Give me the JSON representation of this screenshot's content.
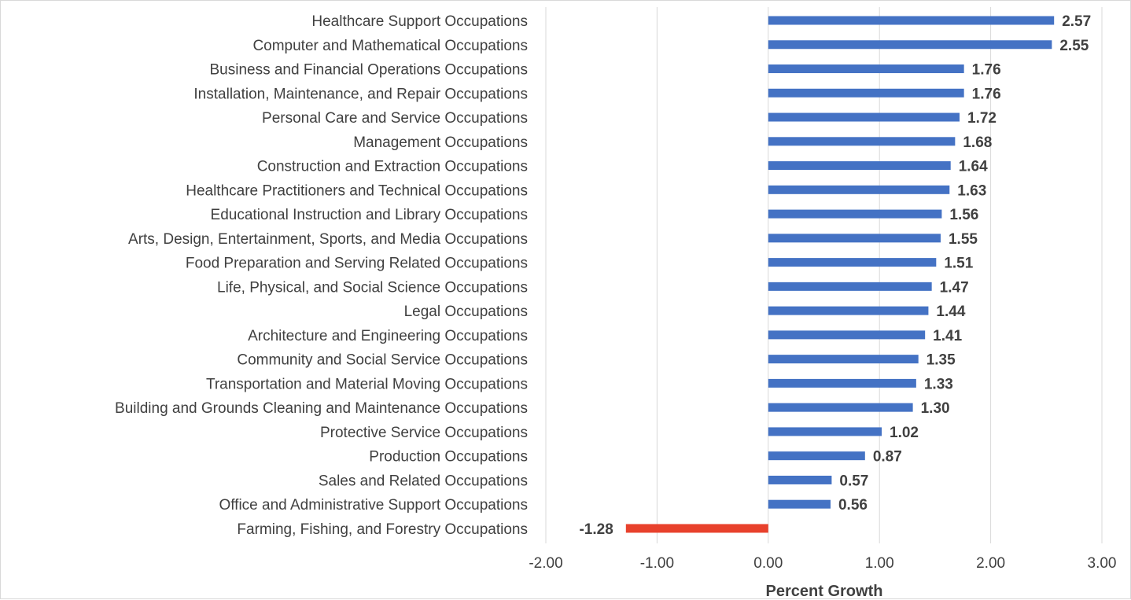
{
  "chart_data": {
    "type": "bar",
    "orientation": "horizontal",
    "title": "",
    "xlabel": "Percent Growth",
    "ylabel": "",
    "xlim": [
      -2,
      3
    ],
    "x_ticks": [
      "-2.00",
      "-1.00",
      "0.00",
      "1.00",
      "2.00",
      "3.00"
    ],
    "grid": true,
    "legend": "none",
    "colors": {
      "positive": "#4472c4",
      "negative": "#e8412c",
      "text": "#404040",
      "grid": "#d9d9d9"
    },
    "categories": [
      "Healthcare Support Occupations",
      "Computer and Mathematical Occupations",
      "Business and Financial Operations Occupations",
      "Installation, Maintenance, and Repair Occupations",
      "Personal Care and Service Occupations",
      "Management Occupations",
      "Construction and Extraction Occupations",
      "Healthcare Practitioners and Technical Occupations",
      "Educational Instruction and Library Occupations",
      "Arts, Design, Entertainment, Sports, and Media Occupations",
      "Food Preparation and Serving Related Occupations",
      "Life, Physical, and Social Science Occupations",
      "Legal Occupations",
      "Architecture and Engineering Occupations",
      "Community and Social Service Occupations",
      "Transportation and Material Moving Occupations",
      "Building and Grounds Cleaning and Maintenance Occupations",
      "Protective Service Occupations",
      "Production Occupations",
      "Sales and Related Occupations",
      "Office and Administrative Support Occupations",
      "Farming, Fishing, and Forestry Occupations"
    ],
    "values": [
      2.57,
      2.55,
      1.76,
      1.76,
      1.72,
      1.68,
      1.64,
      1.63,
      1.56,
      1.55,
      1.51,
      1.47,
      1.44,
      1.41,
      1.35,
      1.33,
      1.3,
      1.02,
      0.87,
      0.57,
      0.56,
      -1.28
    ],
    "value_labels": [
      "2.57",
      "2.55",
      "1.76",
      "1.76",
      "1.72",
      "1.68",
      "1.64",
      "1.63",
      "1.56",
      "1.55",
      "1.51",
      "1.47",
      "1.44",
      "1.41",
      "1.35",
      "1.33",
      "1.30",
      "1.02",
      "0.87",
      "0.57",
      "0.56",
      "-1.28"
    ]
  }
}
